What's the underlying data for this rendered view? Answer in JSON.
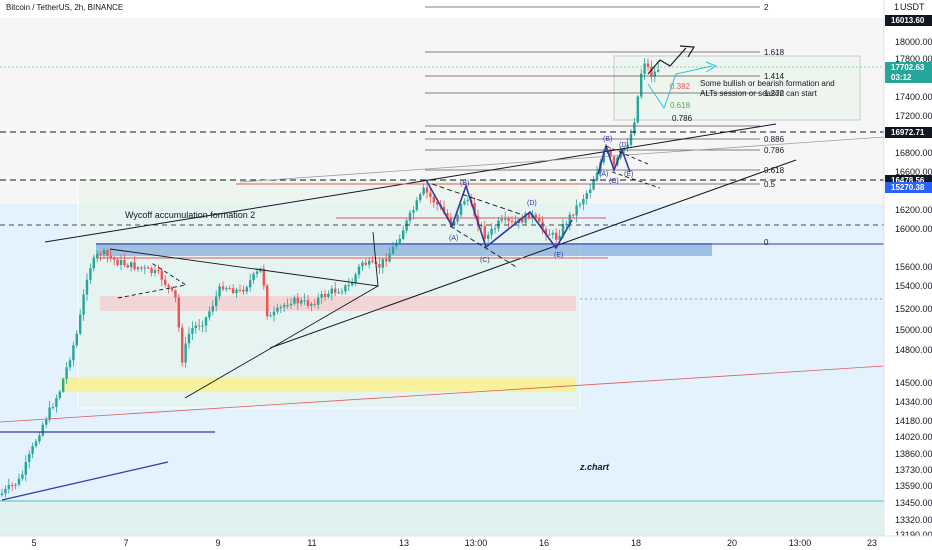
{
  "header": {
    "symbol_title": "Bitcoin / TetherUS, 2h, BINANCE",
    "currency": "USDT"
  },
  "colors": {
    "up": "#26a69a",
    "down": "#ef5350",
    "wave": "#2f3aa6",
    "fib_red": "#e05a5a",
    "fib_green": "#4caf50",
    "fib_cyan": "#26c6da",
    "blue_zone": "#e3f2fd",
    "green_zone": "#e8f5e9",
    "gray_zone": "#eeeeee",
    "yellow_zone": "#fff176",
    "pink_zone": "#f8c8cc",
    "blue_band": "#6f9fd6"
  },
  "chart_data": {
    "type": "candlestick",
    "x_tick_labels": [
      "5",
      "7",
      "9",
      "11",
      "13",
      "13:00",
      "16",
      "18",
      "20",
      "13:00",
      "23"
    ],
    "y_tick_labels": [
      "18000.00",
      "17800.00",
      "17400.00",
      "17200.00",
      "16800.00",
      "16600.00",
      "16200.00",
      "16000.00",
      "15600.00",
      "15400.00",
      "15200.00",
      "15000.00",
      "14800.00",
      "14500.00",
      "14340.00",
      "14180.00",
      "14020.00",
      "13860.00",
      "13730.00",
      "13590.00",
      "13450.00",
      "13320.00",
      "13190.00"
    ],
    "price_tags": [
      {
        "value": "16013.60",
        "style": "dark"
      },
      {
        "value": "17702.63",
        "style": "teal"
      },
      {
        "value": "03:12",
        "style": "teal"
      },
      {
        "value": "16972.71",
        "style": "dark"
      },
      {
        "value": "16478.56",
        "style": "dark"
      },
      {
        "value": "15270.38",
        "style": "blue"
      }
    ],
    "fib_levels": [
      "2",
      "1.618",
      "1.414",
      "1.272",
      "0.786",
      "0.886",
      "0.786",
      "0.618",
      "0.5",
      "0"
    ],
    "fib_small_levels": [
      "0.382",
      "0.618"
    ],
    "wave_labels": [
      "(B)",
      "(D)",
      "(A)",
      "(C)",
      "(E)",
      "(D)",
      "(B)",
      "(A)",
      "(C)",
      "(E)"
    ],
    "annotations": {
      "wyckoff": "Wycoff accumulation formation 2",
      "forecast_line1": "Some bullish or bearish formation and",
      "forecast_line2": "ALTs session or season can start",
      "watermark": "z.chart"
    }
  }
}
